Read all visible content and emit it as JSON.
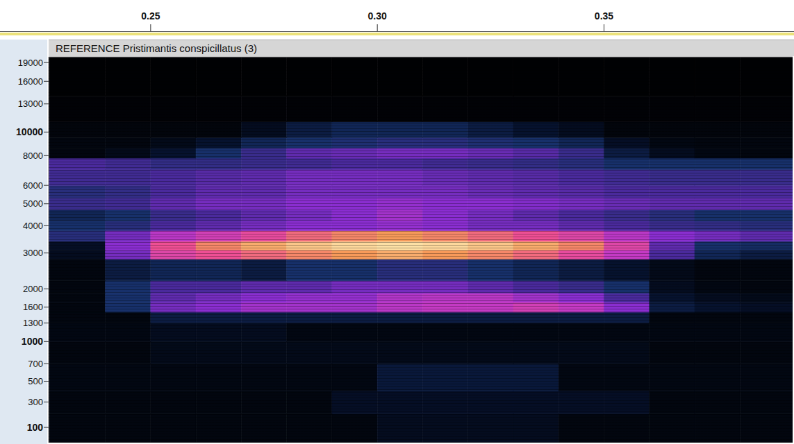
{
  "chart_data": {
    "type": "heatmap",
    "title": "REFERENCE Pristimantis conspicillatus (3)",
    "xlim": [
      0.2275,
      0.3916
    ],
    "xticks": [
      0.25,
      {
        "value": 0.3,
        "label": "0.30"
      },
      0.35
    ],
    "ylim": [
      0,
      20000
    ],
    "yticks": [
      100,
      300,
      500,
      700,
      1000,
      1300,
      1600,
      2000,
      3000,
      4000,
      5000,
      6000,
      8000,
      10000,
      13000,
      16000,
      19000
    ],
    "x_edges": [
      0.2275,
      0.24,
      0.25,
      0.26,
      0.27,
      0.28,
      0.29,
      0.3,
      0.31,
      0.32,
      0.33,
      0.34,
      0.35,
      0.36,
      0.37,
      0.38,
      0.3916
    ],
    "y_edges": [
      0,
      200,
      400,
      700,
      1000,
      1300,
      1500,
      1700,
      1900,
      2200,
      2800,
      3100,
      3400,
      3800,
      4200,
      4700,
      5300,
      6000,
      7000,
      7800,
      8600,
      9500,
      11000,
      14000,
      20000
    ],
    "cells": [
      [
        0.05,
        0.05,
        0.05,
        0.05,
        0.05,
        0.05,
        0.05,
        0.1,
        0.1,
        0.1,
        0.1,
        0.05,
        0.05,
        0.05,
        0.05,
        0.05
      ],
      [
        0.05,
        0.05,
        0.05,
        0.05,
        0.05,
        0.05,
        0.12,
        0.12,
        0.12,
        0.12,
        0.12,
        0.12,
        0.12,
        0.05,
        0.05,
        0.05
      ],
      [
        0.06,
        0.06,
        0.06,
        0.06,
        0.06,
        0.06,
        0.06,
        0.18,
        0.18,
        0.18,
        0.18,
        0.06,
        0.06,
        0.06,
        0.06,
        0.06
      ],
      [
        0.05,
        0.05,
        0.08,
        0.08,
        0.08,
        0.08,
        0.08,
        0.08,
        0.08,
        0.08,
        0.08,
        0.08,
        0.08,
        0.05,
        0.05,
        0.05
      ],
      [
        0.06,
        0.06,
        0.1,
        0.1,
        0.1,
        0.06,
        0.06,
        0.06,
        0.06,
        0.06,
        0.06,
        0.06,
        0.06,
        0.06,
        0.06,
        0.06
      ],
      [
        0.05,
        0.05,
        0.2,
        0.2,
        0.2,
        0.2,
        0.2,
        0.2,
        0.2,
        0.2,
        0.2,
        0.2,
        0.2,
        0.05,
        0.05,
        0.05
      ],
      [
        0.05,
        0.3,
        0.55,
        0.6,
        0.65,
        0.65,
        0.65,
        0.7,
        0.72,
        0.72,
        0.75,
        0.72,
        0.6,
        0.2,
        0.15,
        0.12
      ],
      [
        0.05,
        0.3,
        0.5,
        0.55,
        0.6,
        0.62,
        0.62,
        0.68,
        0.7,
        0.7,
        0.65,
        0.6,
        0.45,
        0.15,
        0.1,
        0.08
      ],
      [
        0.05,
        0.3,
        0.45,
        0.45,
        0.5,
        0.5,
        0.55,
        0.55,
        0.55,
        0.5,
        0.45,
        0.4,
        0.3,
        0.1,
        0.06,
        0.05
      ],
      [
        0.05,
        0.2,
        0.25,
        0.25,
        0.2,
        0.3,
        0.3,
        0.35,
        0.35,
        0.3,
        0.25,
        0.2,
        0.15,
        0.08,
        0.05,
        0.05
      ],
      [
        0.1,
        0.55,
        0.78,
        0.82,
        0.85,
        0.88,
        0.9,
        0.92,
        0.9,
        0.88,
        0.85,
        0.8,
        0.72,
        0.45,
        0.25,
        0.2
      ],
      [
        0.12,
        0.6,
        0.82,
        0.88,
        0.92,
        0.95,
        0.97,
        0.98,
        0.97,
        0.95,
        0.92,
        0.88,
        0.78,
        0.5,
        0.3,
        0.28
      ],
      [
        0.35,
        0.55,
        0.7,
        0.75,
        0.8,
        0.85,
        0.88,
        0.9,
        0.88,
        0.85,
        0.82,
        0.78,
        0.7,
        0.6,
        0.55,
        0.5
      ],
      [
        0.3,
        0.35,
        0.45,
        0.5,
        0.55,
        0.6,
        0.6,
        0.62,
        0.6,
        0.55,
        0.55,
        0.5,
        0.45,
        0.4,
        0.38,
        0.35
      ],
      [
        0.25,
        0.3,
        0.4,
        0.45,
        0.5,
        0.55,
        0.6,
        0.65,
        0.6,
        0.55,
        0.5,
        0.45,
        0.4,
        0.35,
        0.3,
        0.3
      ],
      [
        0.4,
        0.42,
        0.5,
        0.55,
        0.55,
        0.6,
        0.6,
        0.62,
        0.6,
        0.6,
        0.58,
        0.55,
        0.52,
        0.5,
        0.5,
        0.5
      ],
      [
        0.35,
        0.38,
        0.45,
        0.5,
        0.5,
        0.55,
        0.55,
        0.55,
        0.55,
        0.52,
        0.5,
        0.48,
        0.45,
        0.45,
        0.45,
        0.45
      ],
      [
        0.42,
        0.42,
        0.45,
        0.48,
        0.5,
        0.55,
        0.55,
        0.55,
        0.52,
        0.5,
        0.48,
        0.45,
        0.42,
        0.4,
        0.4,
        0.4
      ],
      [
        0.45,
        0.42,
        0.38,
        0.38,
        0.4,
        0.42,
        0.45,
        0.45,
        0.42,
        0.4,
        0.38,
        0.35,
        0.3,
        0.3,
        0.3,
        0.3
      ],
      [
        0.05,
        0.08,
        0.15,
        0.3,
        0.4,
        0.5,
        0.52,
        0.55,
        0.55,
        0.52,
        0.48,
        0.4,
        0.2,
        0.1,
        0.06,
        0.05
      ],
      [
        0.05,
        0.05,
        0.08,
        0.15,
        0.25,
        0.3,
        0.32,
        0.35,
        0.35,
        0.32,
        0.3,
        0.25,
        0.12,
        0.06,
        0.05,
        0.05
      ],
      [
        0.04,
        0.04,
        0.04,
        0.04,
        0.1,
        0.2,
        0.25,
        0.25,
        0.25,
        0.2,
        0.15,
        0.1,
        0.04,
        0.04,
        0.04,
        0.04
      ],
      [
        0.02,
        0.02,
        0.02,
        0.02,
        0.02,
        0.02,
        0.02,
        0.02,
        0.02,
        0.02,
        0.02,
        0.02,
        0.02,
        0.02,
        0.02,
        0.02
      ],
      [
        0.01,
        0.01,
        0.01,
        0.01,
        0.01,
        0.01,
        0.01,
        0.01,
        0.01,
        0.01,
        0.01,
        0.01,
        0.01,
        0.01,
        0.01,
        0.01
      ]
    ]
  }
}
